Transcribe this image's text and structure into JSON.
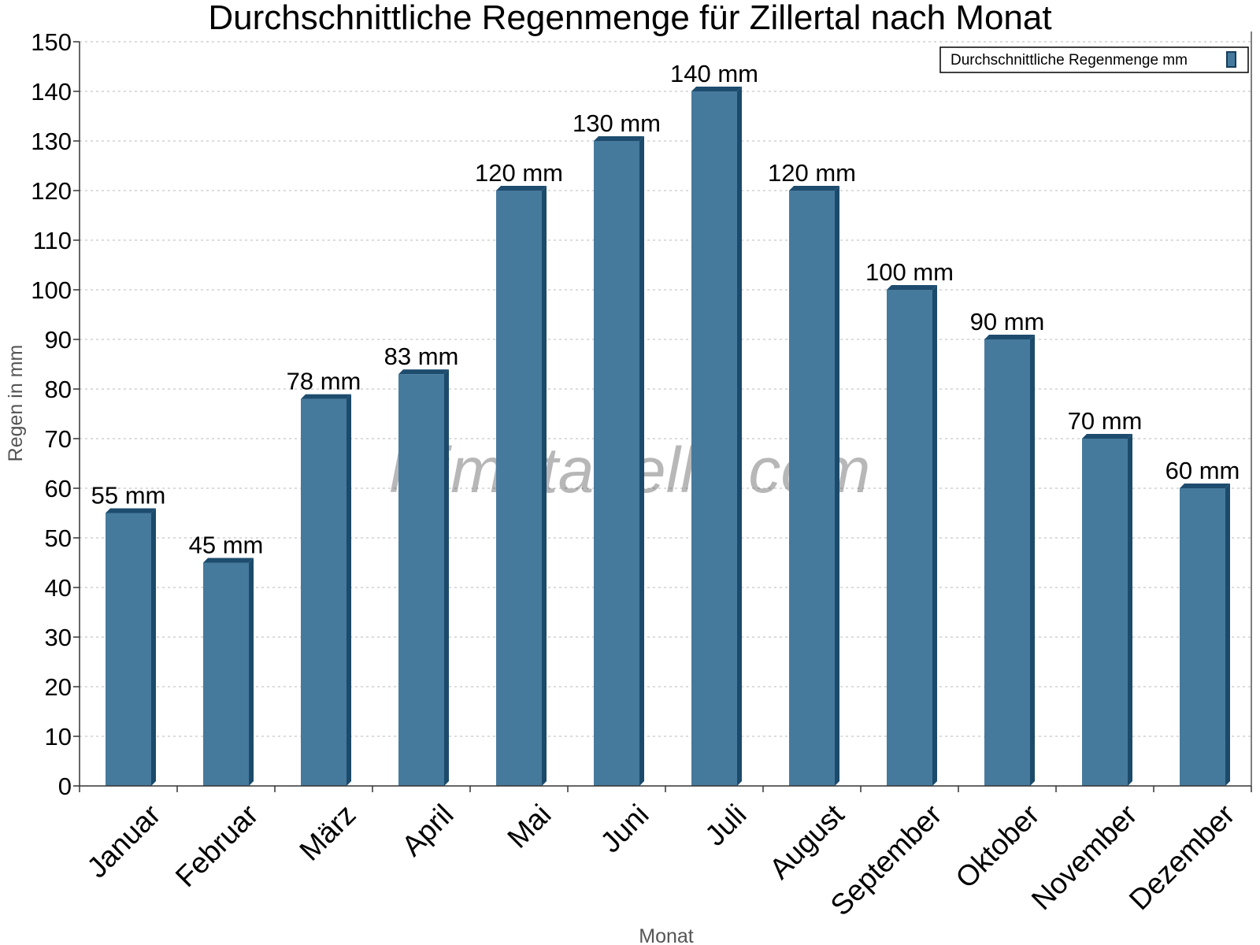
{
  "chart_data": {
    "type": "bar",
    "title": "Durchschnittliche Regenmenge für Zillertal nach Monat",
    "xlabel": "Monat",
    "ylabel": "Regen in mm",
    "ylim": [
      0,
      150
    ],
    "ytick_step": 10,
    "grid": true,
    "legend_position": "top-right",
    "categories": [
      "Januar",
      "Februar",
      "März",
      "April",
      "Mai",
      "Juni",
      "Juli",
      "August",
      "September",
      "Oktober",
      "November",
      "Dezember"
    ],
    "series": [
      {
        "name": "Durchschnittliche Regenmenge mm",
        "color": "#467a9c",
        "values": [
          55,
          45,
          78,
          83,
          120,
          130,
          140,
          120,
          100,
          90,
          70,
          60
        ],
        "labels": [
          "55 mm",
          "45 mm",
          "78 mm",
          "83 mm",
          "120 mm",
          "130 mm",
          "140 mm",
          "120 mm",
          "100 mm",
          "90 mm",
          "70 mm",
          "60 mm"
        ]
      }
    ],
    "watermark": "klimatabelle.com"
  }
}
